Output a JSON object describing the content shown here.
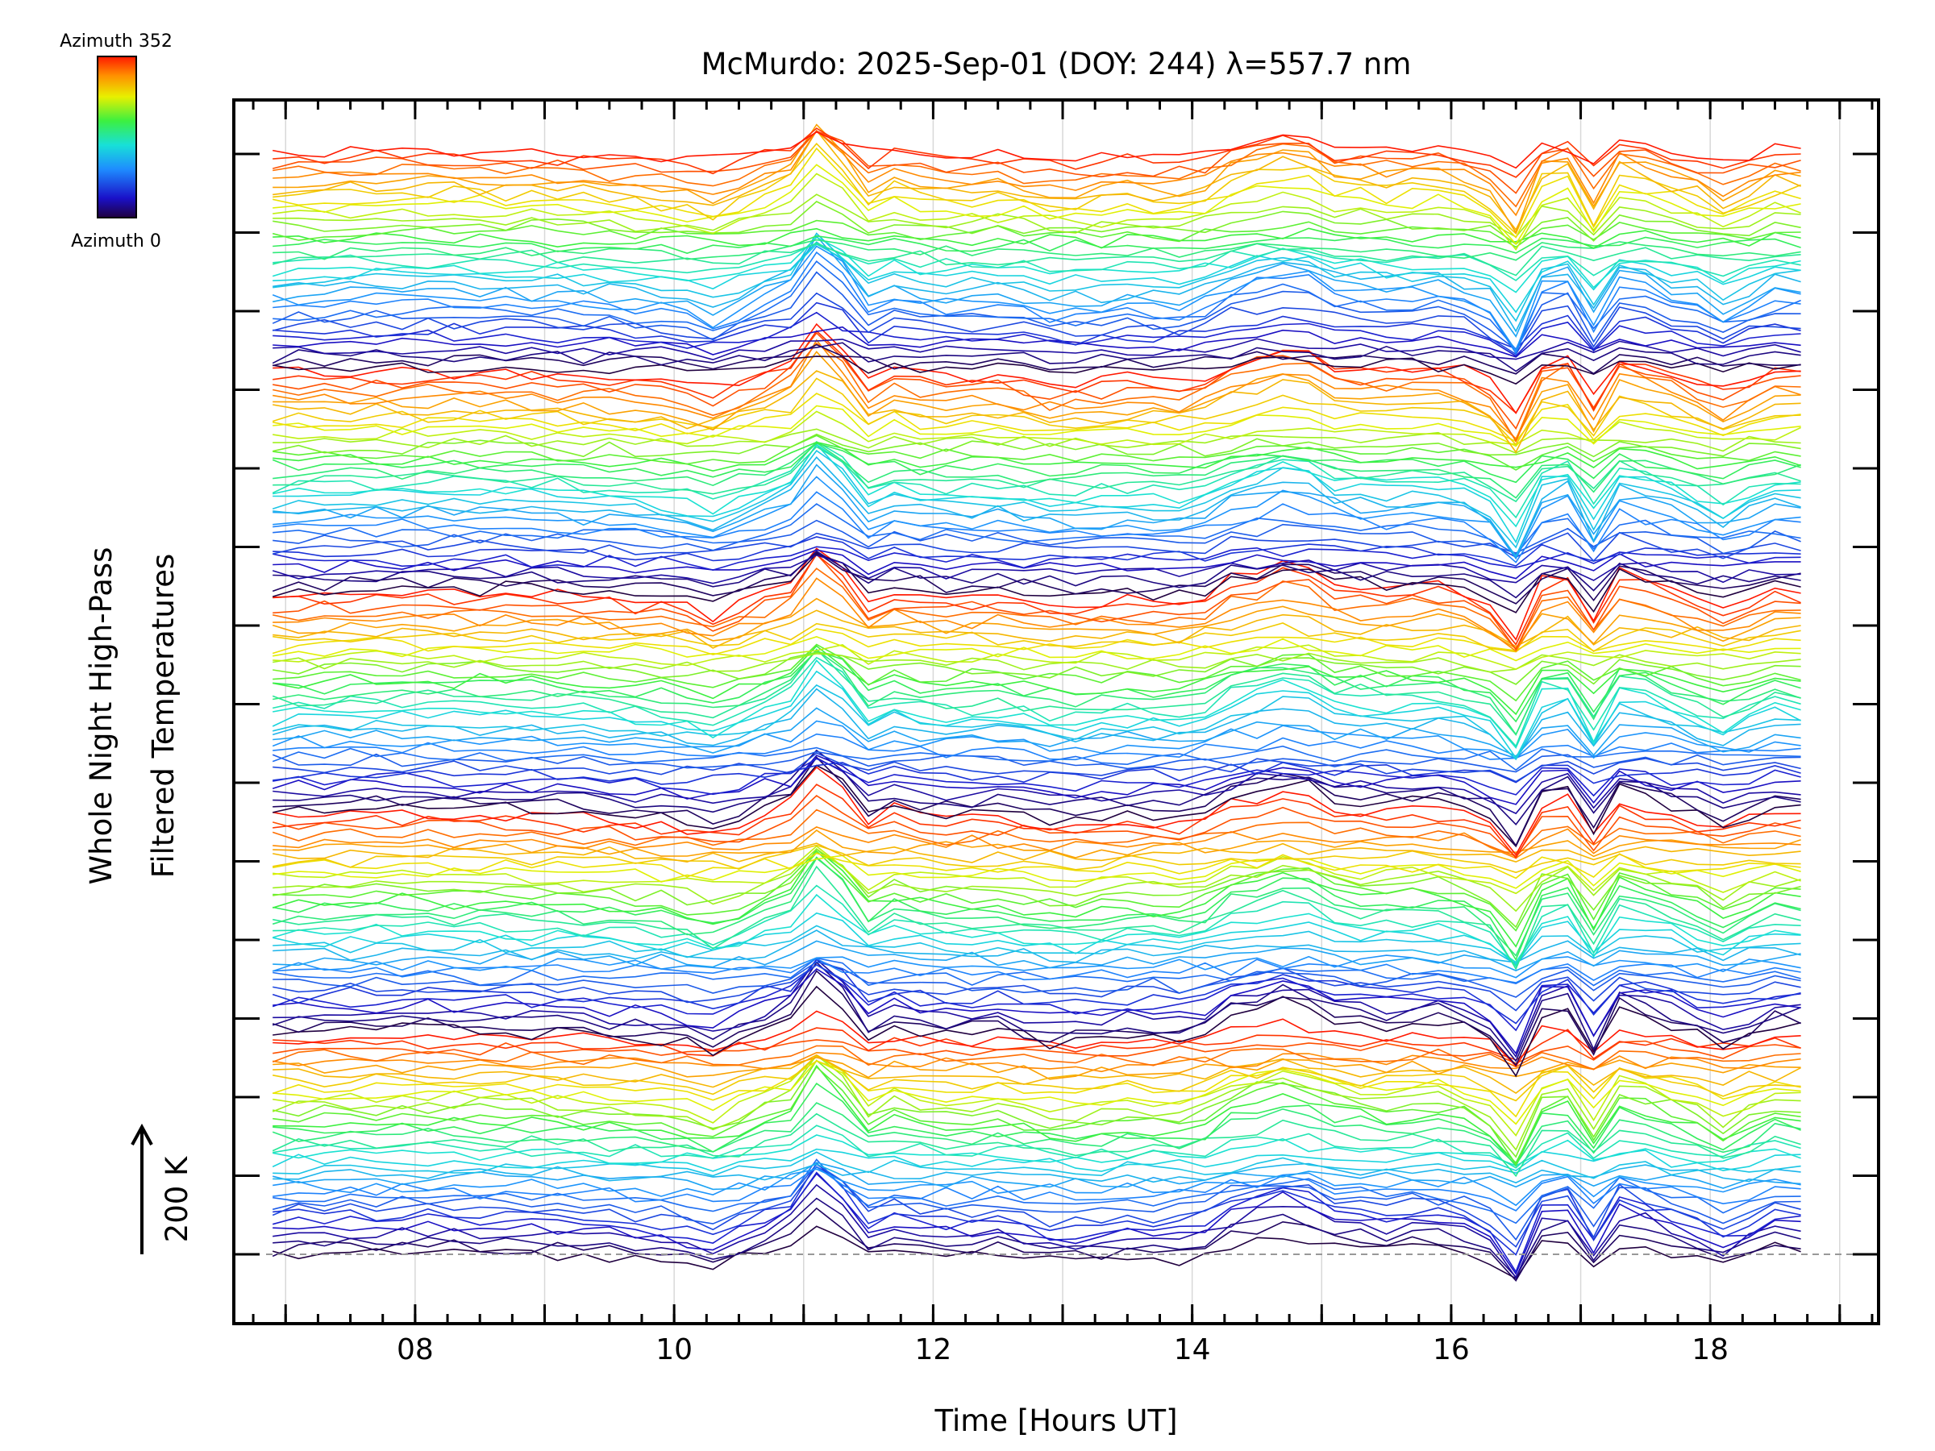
{
  "chart_data": {
    "type": "line",
    "title": "McMurdo: 2025-Sep-01 (DOY: 244) λ=557.7 nm",
    "xlabel": "Time [Hours UT]",
    "ylabel_line1": "Whole Night High-Pass",
    "ylabel_line2": "Filtered Temperatures",
    "xlim": [
      6.6,
      19.3
    ],
    "x_ticks": [
      8,
      10,
      12,
      14,
      16,
      18
    ],
    "x_tick_labels": [
      "08",
      "10",
      "12",
      "14",
      "16",
      "18"
    ],
    "x_minor_step": 0.25,
    "y_major_tick_count": 15,
    "y_offset_per_major_tick": "70 K",
    "scale_bar_label": "200 K",
    "scale_bar_value_K": 200,
    "colorbar": {
      "top_label": "Azimuth 352",
      "bottom_label": "Azimuth 0",
      "colormap": "rainbow"
    },
    "grid": true,
    "baseline": "dashed gray at lowest trace",
    "stack_groups": 5,
    "traces_per_group": 36,
    "azimuth_step_deg": 10,
    "time_range_hours": [
      6.9,
      18.8
    ],
    "time_step_hours": 0.2,
    "common_signal": {
      "description": "shared temperature perturbation (K) seen in all traces",
      "times": [
        6.9,
        8.0,
        9.0,
        10.0,
        10.3,
        10.9,
        11.2,
        11.4,
        11.7,
        12.0,
        12.5,
        13.0,
        13.5,
        14.0,
        14.3,
        14.8,
        15.1,
        15.5,
        16.0,
        16.3,
        16.5,
        16.8,
        16.9,
        17.0,
        17.3,
        17.5,
        17.9,
        18.1,
        18.5,
        18.8
      ],
      "values": [
        0,
        5,
        2,
        -10,
        -25,
        20,
        95,
        -15,
        10,
        -5,
        0,
        -15,
        -5,
        -10,
        20,
        45,
        15,
        10,
        15,
        -10,
        -55,
        60,
        30,
        -60,
        30,
        20,
        -5,
        -20,
        10,
        5
      ]
    }
  }
}
